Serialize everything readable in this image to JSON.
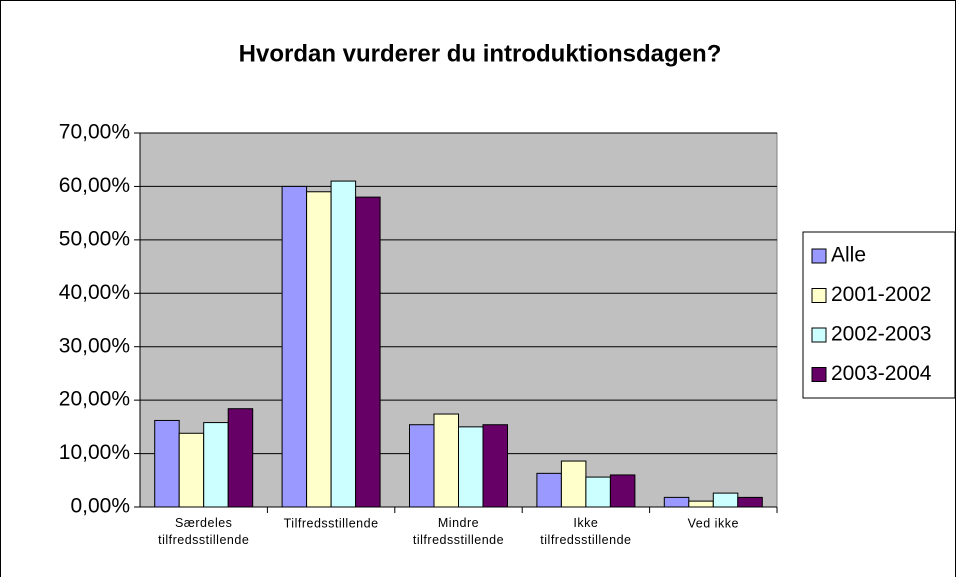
{
  "chart_data": {
    "type": "bar",
    "title": "Hvordan vurderer du introduktionsdagen?",
    "categories": [
      "Særdeles tilfredsstillende",
      "Tilfredsstillende",
      "Mindre tilfredsstillende",
      "Ikke tilfredsstillende",
      "Ved ikke"
    ],
    "series": [
      {
        "name": "Alle",
        "color": "#9999ff",
        "values": [
          16.2,
          60,
          15.4,
          6.3,
          1.8
        ]
      },
      {
        "name": "2001-2002",
        "color": "#ffffcc",
        "values": [
          13.8,
          59,
          17.4,
          8.6,
          1.1
        ]
      },
      {
        "name": "2002-2003",
        "color": "#ccffff",
        "values": [
          15.8,
          61,
          15,
          5.6,
          2.6
        ]
      },
      {
        "name": "2003-2004",
        "color": "#660066",
        "values": [
          18.4,
          58,
          15.4,
          6,
          1.8
        ]
      }
    ],
    "ylim": [
      0,
      70
    ],
    "yticks": [
      {
        "value": 0,
        "label": "0,00%"
      },
      {
        "value": 10,
        "label": "10,00%"
      },
      {
        "value": 20,
        "label": "20,00%"
      },
      {
        "value": 30,
        "label": "30,00%"
      },
      {
        "value": 40,
        "label": "40,00%"
      },
      {
        "value": 50,
        "label": "50,00%"
      },
      {
        "value": 60,
        "label": "60,00%"
      },
      {
        "value": 70,
        "label": "70,00%"
      }
    ],
    "grid": true,
    "plot_background": "#c0c0c0",
    "legend": "right"
  }
}
